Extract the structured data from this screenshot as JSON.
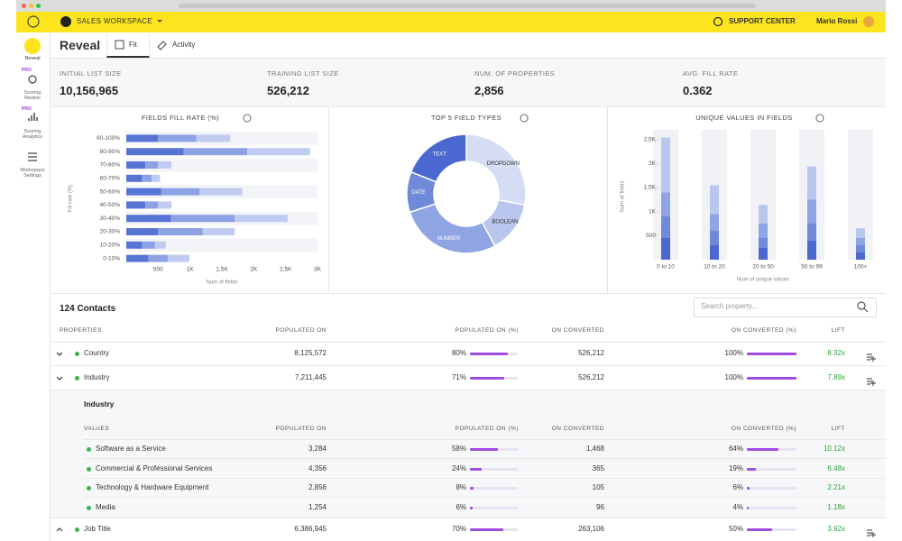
{
  "app": {
    "workspace": "SALES WORKSPACE",
    "support": "SUPPORT CENTER",
    "user": "Mario Rossi"
  },
  "sidebar": {
    "items": [
      "Reveal",
      "Scoring Models",
      "Scoring Analytics",
      "Workspace Settings"
    ],
    "badge": "PRO"
  },
  "header": {
    "title": "Reveal",
    "tabs": [
      "Fit",
      "Activity"
    ]
  },
  "stats": [
    {
      "label": "INITIAL LIST SIZE",
      "value": "10,156,965"
    },
    {
      "label": "TRAINING LIST SIZE",
      "value": "526,212"
    },
    {
      "label": "NUM. OF PROPERTIES",
      "value": "2,856"
    },
    {
      "label": "AVG. FILL RATE",
      "value": "0.362"
    }
  ],
  "chart_data": [
    {
      "type": "bar",
      "orientation": "horizontal",
      "stacked": true,
      "title": "FIELDS FILL RATE (%)",
      "xlabel": "Num of fields",
      "ylabel": "Fill rate (%)",
      "categories": [
        "90-100%",
        "80-90%",
        "70-80%",
        "60-70%",
        "50-60%",
        "40-50%",
        "30-40%",
        "20-30%",
        "10-20%",
        "0-10%"
      ],
      "series": [
        {
          "color": "#5774d4",
          "values": [
            500,
            900,
            300,
            250,
            550,
            300,
            700,
            500,
            250,
            350
          ]
        },
        {
          "color": "#8da2e4",
          "values": [
            600,
            1000,
            200,
            150,
            600,
            200,
            1000,
            700,
            200,
            300
          ]
        },
        {
          "color": "#bfcbf1",
          "values": [
            530,
            980,
            210,
            130,
            670,
            210,
            830,
            500,
            170,
            340
          ]
        }
      ],
      "xlim": [
        0,
        3000
      ],
      "xticks": [
        500,
        {
          "value": 1000,
          "label": "1K"
        },
        {
          "value": 1500,
          "label": "1,5K"
        },
        {
          "value": 2000,
          "label": "2K"
        },
        {
          "value": 2500,
          "label": "2,5K"
        },
        {
          "value": 3000,
          "label": "3K"
        }
      ]
    },
    {
      "type": "pie",
      "donut": true,
      "title": "TOP 5 FIELD TYPES",
      "categories": [
        "DROPDOWN",
        "BOOLEAN",
        "NUMBER",
        "DATE",
        "TEXT"
      ],
      "values": [
        28,
        14,
        28,
        11,
        19
      ],
      "colors": [
        "#d5ddf4",
        "#b9c7ee",
        "#8ea4e3",
        "#6f8ad9",
        "#4a68cf"
      ]
    },
    {
      "type": "bar",
      "orientation": "vertical",
      "stacked": true,
      "title": "UNIQUE VALUES IN FIELDS",
      "xlabel": "Num of unique values",
      "ylabel": "Num of fields",
      "categories": [
        "0 to 10",
        "10 to 20",
        "20 to 50",
        "50 to 99",
        "100+"
      ],
      "series": [
        {
          "color": "#4a68cf",
          "values": [
            450,
            300,
            250,
            400,
            150
          ]
        },
        {
          "color": "#6f8ad9",
          "values": [
            450,
            300,
            200,
            350,
            150
          ]
        },
        {
          "color": "#8ea4e3",
          "values": [
            500,
            350,
            300,
            500,
            150
          ]
        },
        {
          "color": "#b9c7ee",
          "values": [
            1140,
            600,
            390,
            690,
            200
          ]
        }
      ],
      "ylim": [
        0,
        2700
      ],
      "yticks": [
        500,
        {
          "value": 1000,
          "label": "1K"
        },
        {
          "value": 1500,
          "label": "1,5K"
        },
        {
          "value": 2000,
          "label": "2K"
        },
        {
          "value": 2500,
          "label": "2,5K"
        }
      ]
    }
  ],
  "table": {
    "title": "124 Contacts",
    "search_placeholder": "Search property...",
    "columns": [
      "PROPERTIES",
      "POPULATED ON",
      "POPULATED ON (%)",
      "ON CONVERTED",
      "ON CONVERTED (%)",
      "LIFT"
    ],
    "rows": [
      {
        "name": "Country",
        "populated": "8,125,572",
        "populated_pct": 80,
        "populated_pct_label": "80%",
        "converted": "526,212",
        "converted_pct": 100,
        "converted_pct_label": "100%",
        "lift": "8.32x"
      },
      {
        "name": "Industry",
        "populated": "7,211,445",
        "populated_pct": 71,
        "populated_pct_label": "71%",
        "converted": "526,212",
        "converted_pct": 100,
        "converted_pct_label": "100%",
        "lift": "7.89x"
      },
      {
        "name": "Job Title",
        "populated": "6,386,945",
        "populated_pct": 70,
        "populated_pct_label": "70%",
        "converted": "263,106",
        "converted_pct": 50,
        "converted_pct_label": "50%",
        "lift": "3.92x"
      }
    ],
    "expanded": {
      "title": "Industry",
      "columns": [
        "VALUES",
        "POPULATED ON",
        "POPULATED ON (%)",
        "ON CONVERTED",
        "ON CONVERTED (%)",
        "LIFT"
      ],
      "rows": [
        {
          "name": "Software as a Service",
          "populated": "3,284",
          "populated_pct": 58,
          "populated_pct_label": "58%",
          "converted": "1,468",
          "converted_pct": 64,
          "converted_pct_label": "64%",
          "lift": "10.12x"
        },
        {
          "name": "Commercial & Professional Services",
          "populated": "4,356",
          "populated_pct": 24,
          "populated_pct_label": "24%",
          "converted": "365",
          "converted_pct": 19,
          "converted_pct_label": "19%",
          "lift": "6.48x"
        },
        {
          "name": "Technology & Hardware Equipment",
          "populated": "2,856",
          "populated_pct": 8,
          "populated_pct_label": "8%",
          "converted": "105",
          "converted_pct": 6,
          "converted_pct_label": "6%",
          "lift": "2.21x"
        },
        {
          "name": "Media",
          "populated": "1,254",
          "populated_pct": 6,
          "populated_pct_label": "6%",
          "converted": "96",
          "converted_pct": 4,
          "converted_pct_label": "4%",
          "lift": "1.18x"
        }
      ]
    }
  }
}
